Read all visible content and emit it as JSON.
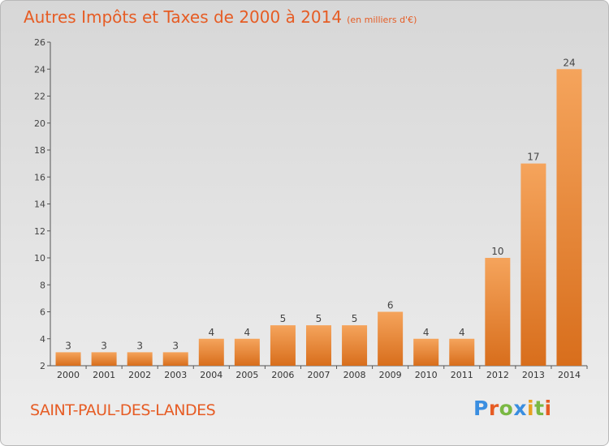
{
  "title": "Autres Impôts et Taxes de 2000 à 2014",
  "unit": "(en milliers d'€)",
  "commune": "SAINT-PAUL-DES-LANDES",
  "logo": {
    "text": "Proxiti",
    "letter_colors": [
      "#3a8ee0",
      "#e65c24",
      "#7ab843",
      "#3a8ee0",
      "#e8a020",
      "#7ab843",
      "#e65c24"
    ]
  },
  "colors": {
    "title": "#e65c24",
    "bar_light": "#f5a45c",
    "bar_dark": "#d86e1c",
    "axis": "#555555"
  },
  "chart_data": {
    "type": "bar",
    "title": "Autres Impôts et Taxes de 2000 à 2014",
    "categories": [
      "2000",
      "2001",
      "2002",
      "2003",
      "2004",
      "2005",
      "2006",
      "2007",
      "2008",
      "2009",
      "2010",
      "2011",
      "2012",
      "2013",
      "2014"
    ],
    "values": [
      3,
      3,
      3,
      3,
      4,
      4,
      5,
      5,
      5,
      6,
      4,
      4,
      10,
      17,
      24
    ],
    "ylim": [
      2,
      26
    ],
    "yticks": [
      2,
      4,
      6,
      8,
      10,
      12,
      14,
      16,
      18,
      20,
      22,
      24,
      26
    ],
    "grid": false,
    "xlabel": "",
    "ylabel": ""
  }
}
